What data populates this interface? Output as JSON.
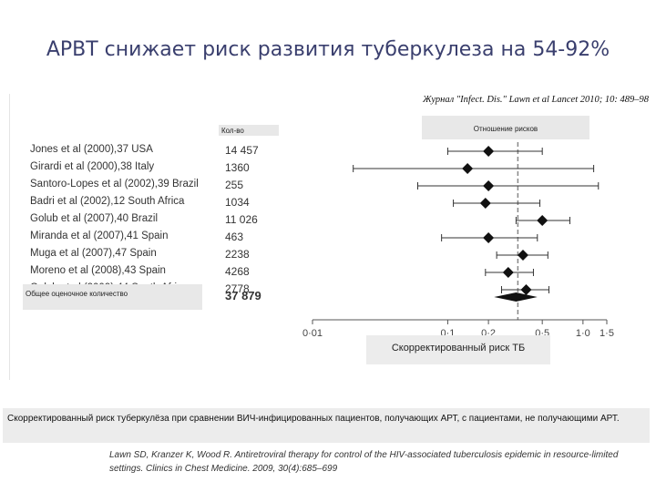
{
  "slide": {
    "title": "АРВТ снижает риск развития туберкулеза на 54-92%",
    "journal_ref": "Журнал \"Infect. Dis.\" Lawn et al Lancet 2010; 10: 489–98",
    "label_count": "Кол-во",
    "label_ratio": "Отношение рисков",
    "label_total": "Общее оценочное количество",
    "label_axis": "Скорректированный риск ТБ",
    "caption": "Скорректированный риск туберкулёза при сравнении ВИЧ-инфицированных пациентов, получающих АРТ, с пациентами, не получающими АРТ.",
    "citation": "Lawn SD, Kranzer K, Wood R. Antiretroviral therapy for control of the HIV-associated tuberculosis epidemic in resource-limited settings. Clinics in Chest Medicine. 2009, 30(4):685–699"
  },
  "chart_data": {
    "type": "forest",
    "x_scale": "log",
    "xlim": [
      0.01,
      1.5
    ],
    "x_ticks": [
      {
        "value": 0.01,
        "label": "0·01"
      },
      {
        "value": 0.1,
        "label": "0·1"
      },
      {
        "value": 0.2,
        "label": "0·2"
      },
      {
        "value": 0.5,
        "label": "0·5"
      },
      {
        "value": 1.0,
        "label": "1·0"
      },
      {
        "value": 1.5,
        "label": "1·5"
      }
    ],
    "reference_line": 0.33,
    "studies": [
      {
        "name": "Jones et al (2000),37 USA",
        "n": "14 457",
        "estimate": 0.2,
        "ci": [
          0.1,
          0.5
        ]
      },
      {
        "name": "Girardi et al (2000),38 Italy",
        "n": "1360",
        "estimate": 0.14,
        "ci": [
          0.02,
          1.2
        ]
      },
      {
        "name": "Santoro-Lopes et al (2002),39 Brazil",
        "n": "255",
        "estimate": 0.2,
        "ci": [
          0.06,
          1.3
        ]
      },
      {
        "name": "Badri et al (2002),12 South Africa",
        "n": "1034",
        "estimate": 0.19,
        "ci": [
          0.11,
          0.48
        ]
      },
      {
        "name": "Golub et al (2007),40 Brazil",
        "n": "11 026",
        "estimate": 0.5,
        "ci": [
          0.32,
          0.8
        ]
      },
      {
        "name": "Miranda et al (2007),41 Spain",
        "n": "463",
        "estimate": 0.2,
        "ci": [
          0.09,
          0.46
        ]
      },
      {
        "name": "Muga et al (2007),47 Spain",
        "n": "2238",
        "estimate": 0.36,
        "ci": [
          0.23,
          0.55
        ]
      },
      {
        "name": "Moreno et al (2008),43 Spain",
        "n": "4268",
        "estimate": 0.28,
        "ci": [
          0.19,
          0.43
        ]
      },
      {
        "name": "Golub et al (2009),44 South Africa",
        "n": "2778",
        "estimate": 0.38,
        "ci": [
          0.25,
          0.56
        ]
      }
    ],
    "pooled": {
      "n": "37 879",
      "estimate": 0.32,
      "ci": [
        0.22,
        0.46
      ]
    }
  }
}
